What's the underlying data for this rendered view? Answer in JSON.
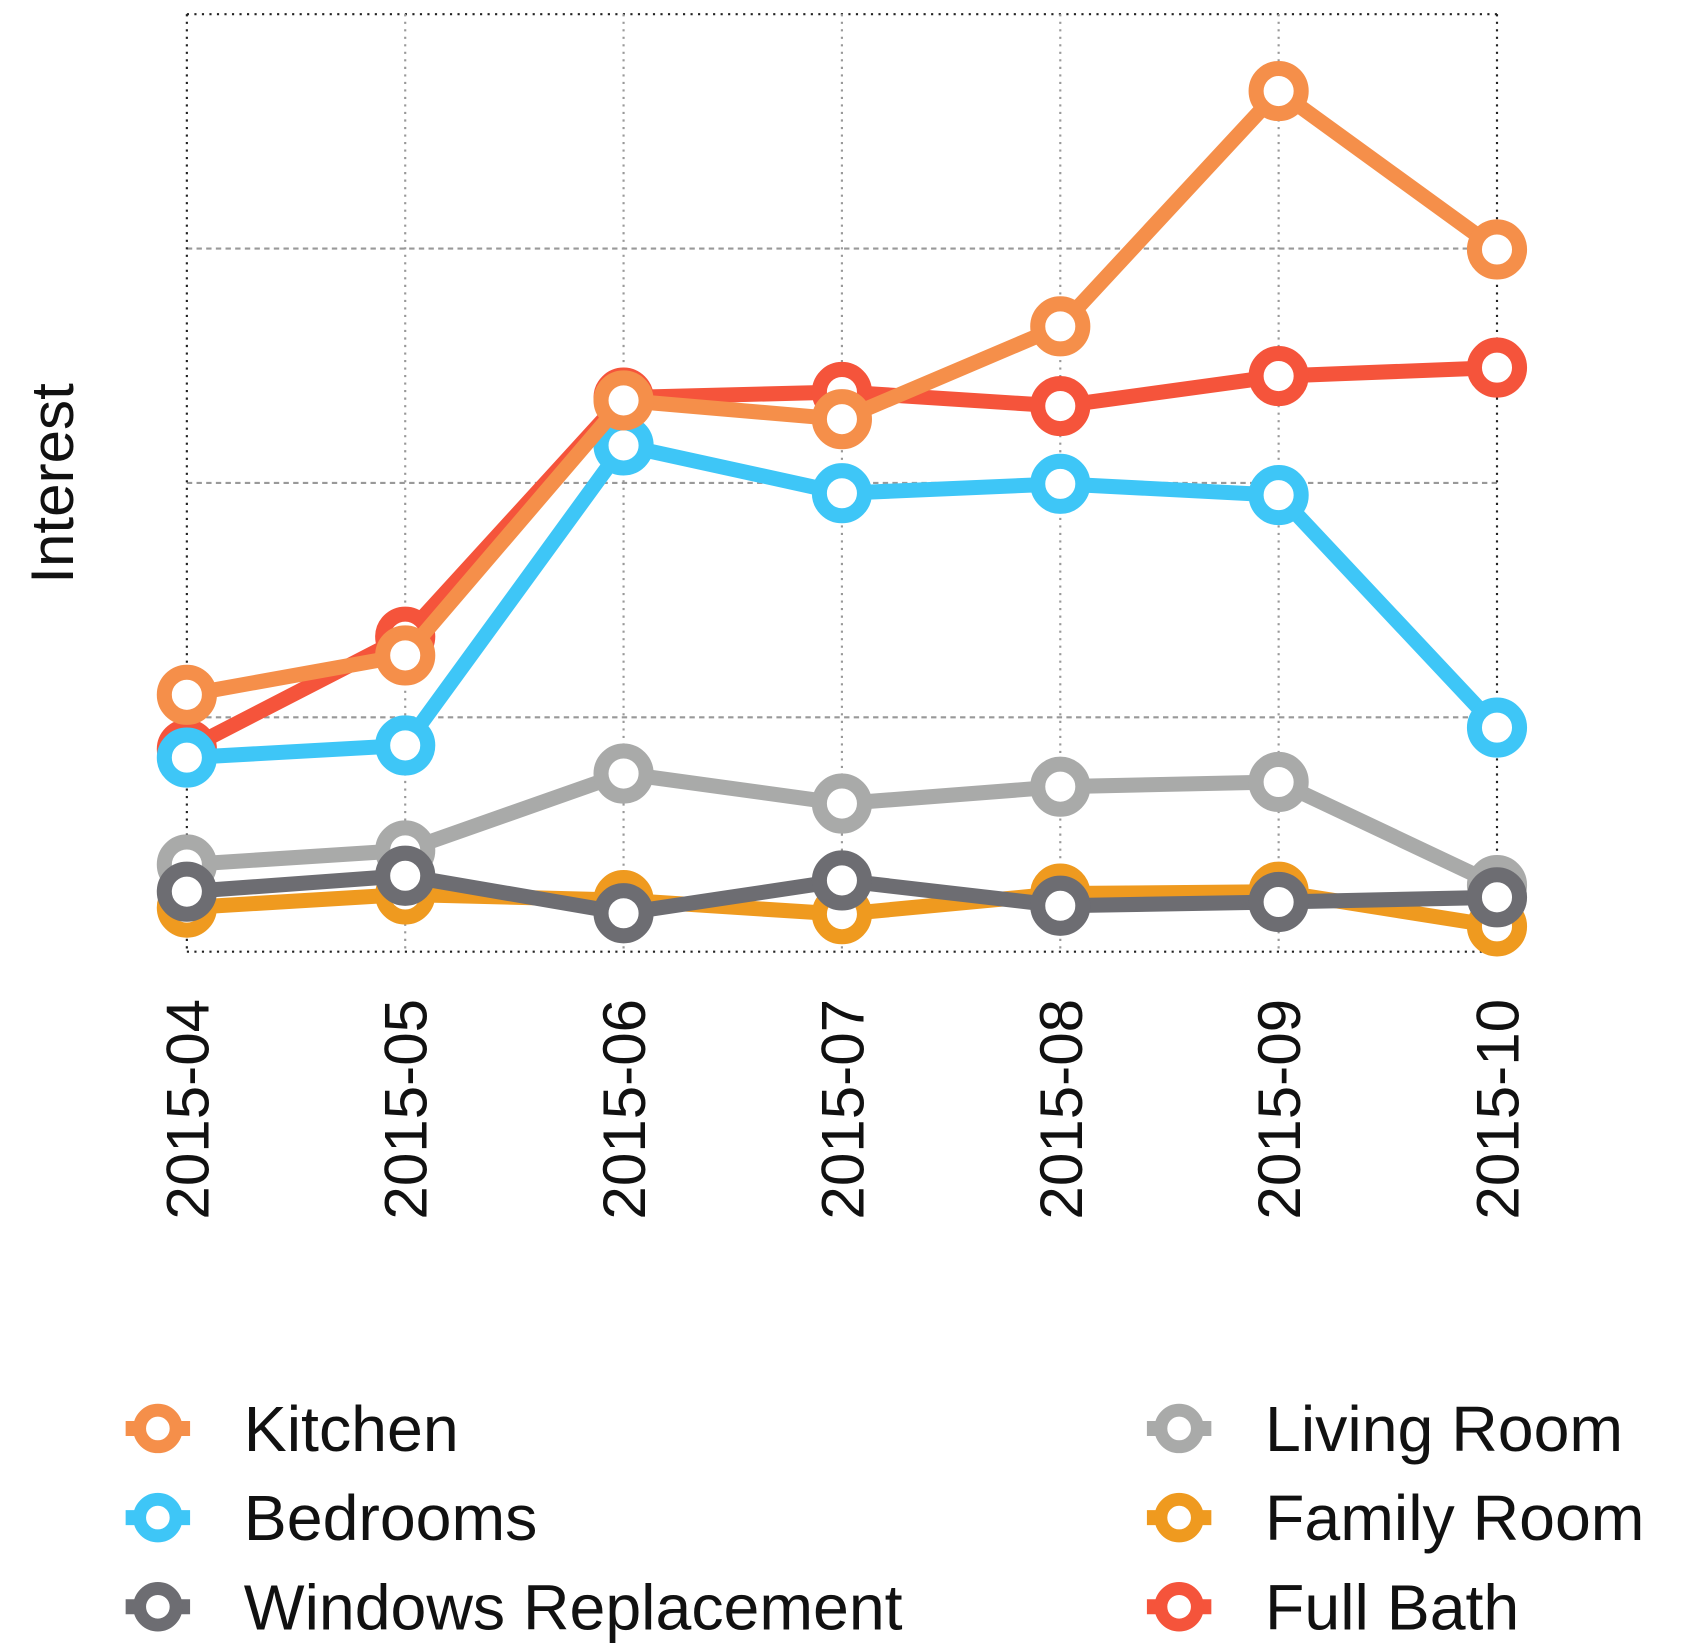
{
  "chart_data": {
    "type": "line",
    "y_label": "Interest",
    "categories": [
      "2015-04",
      "2015-05",
      "2015-06",
      "2015-07",
      "2015-08",
      "2015-09",
      "2015-10"
    ],
    "ylim": [
      0,
      100
    ],
    "yticks": [
      0,
      25,
      50,
      75,
      100
    ],
    "grid": true,
    "legend": "bottom",
    "series": [
      {
        "name": "Kitchen",
        "color": "#f58f4a",
        "values": [
          27.4,
          31.6,
          58.8,
          56.8,
          66.7,
          91.8,
          74.9
        ]
      },
      {
        "name": "Bedrooms",
        "color": "#3ec6f7",
        "values": [
          20.7,
          22.0,
          54.0,
          48.9,
          49.9,
          48.7,
          23.9
        ]
      },
      {
        "name": "Windows Replacement",
        "color": "#6d6d72",
        "values": [
          6.4,
          8.1,
          4.1,
          7.6,
          4.9,
          5.3,
          5.8
        ]
      },
      {
        "name": "Living Room",
        "color": "#a9aaa9",
        "values": [
          9.3,
          10.8,
          19.0,
          15.8,
          17.6,
          18.1,
          7.1
        ]
      },
      {
        "name": "Family Room",
        "color": "#ef9a1f",
        "values": [
          4.7,
          6.1,
          5.5,
          4.0,
          6.2,
          6.4,
          2.7
        ]
      },
      {
        "name": "Full Bath",
        "color": "#f5543b",
        "values": [
          21.6,
          33.6,
          59.1,
          59.7,
          58.2,
          61.4,
          62.3
        ]
      }
    ]
  }
}
